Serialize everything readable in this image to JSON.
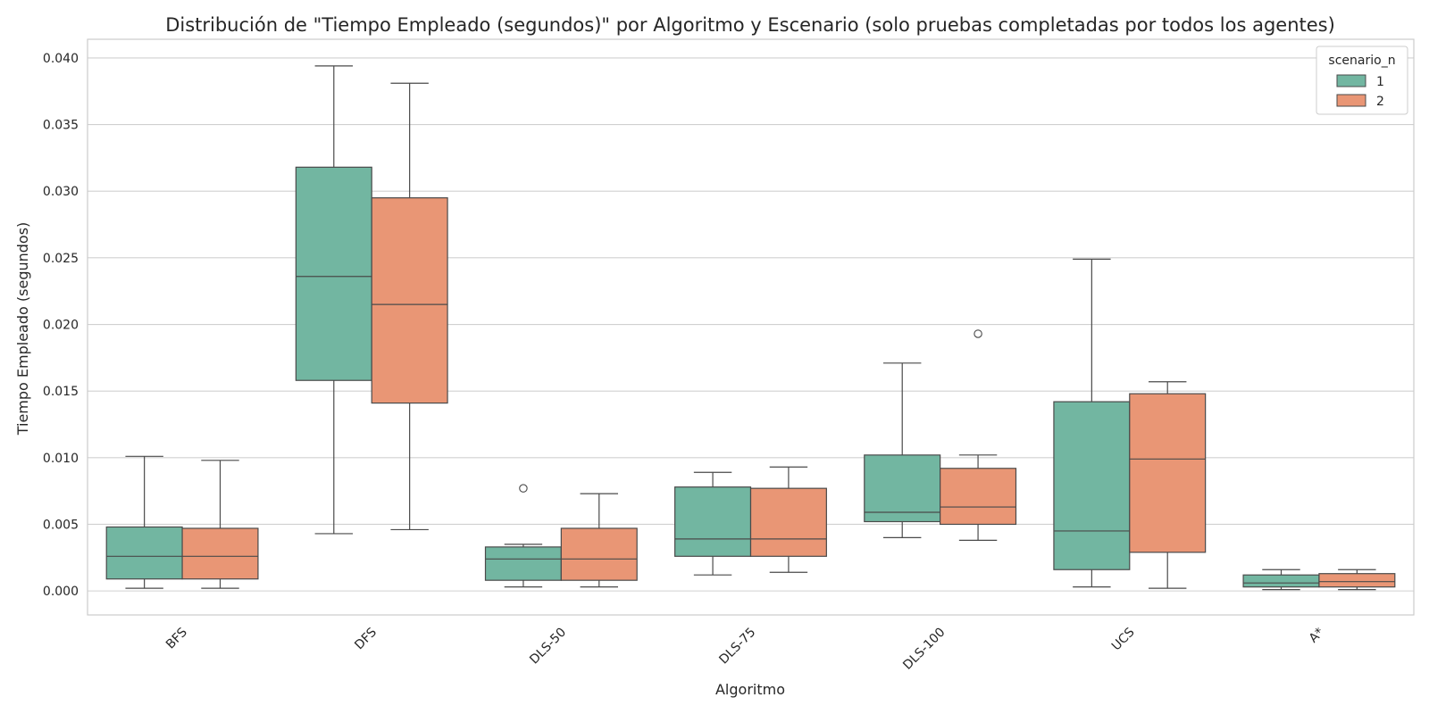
{
  "chart_data": {
    "type": "boxplot",
    "title": "Distribución de \"Tiempo Empleado (segundos)\" por Algoritmo y Escenario (solo pruebas completadas por todos los agentes)",
    "xlabel": "Algoritmo",
    "ylabel": "Tiempo Empleado (segundos)",
    "ylim": [
      -0.0018,
      0.0414
    ],
    "yticks": [
      0.0,
      0.005,
      0.01,
      0.015,
      0.02,
      0.025,
      0.03,
      0.035,
      0.04
    ],
    "ytick_labels": [
      "0.000",
      "0.005",
      "0.010",
      "0.015",
      "0.020",
      "0.025",
      "0.030",
      "0.035",
      "0.040"
    ],
    "grid": "horizontal",
    "legend": {
      "title": "scenario_n",
      "position": "top-right"
    },
    "categories": [
      "BFS",
      "DFS",
      "DLS-50",
      "DLS-75",
      "DLS-100",
      "UCS",
      "A*"
    ],
    "series": [
      {
        "name": "1",
        "color": "#72b6a1",
        "boxes": [
          {
            "whisker_low": 0.0002,
            "q1": 0.0009,
            "median": 0.0026,
            "q3": 0.0048,
            "whisker_high": 0.0101,
            "outliers": []
          },
          {
            "whisker_low": 0.0043,
            "q1": 0.0158,
            "median": 0.0236,
            "q3": 0.0318,
            "whisker_high": 0.0394,
            "outliers": []
          },
          {
            "whisker_low": 0.0003,
            "q1": 0.0008,
            "median": 0.0024,
            "q3": 0.0033,
            "whisker_high": 0.0035,
            "outliers": [
              0.0077
            ]
          },
          {
            "whisker_low": 0.0012,
            "q1": 0.0026,
            "median": 0.0039,
            "q3": 0.0078,
            "whisker_high": 0.0089,
            "outliers": []
          },
          {
            "whisker_low": 0.004,
            "q1": 0.0052,
            "median": 0.0059,
            "q3": 0.0102,
            "whisker_high": 0.0171,
            "outliers": []
          },
          {
            "whisker_low": 0.0003,
            "q1": 0.0016,
            "median": 0.0045,
            "q3": 0.0142,
            "whisker_high": 0.0249,
            "outliers": []
          },
          {
            "whisker_low": 0.0001,
            "q1": 0.0003,
            "median": 0.0006,
            "q3": 0.0012,
            "whisker_high": 0.0016,
            "outliers": []
          }
        ]
      },
      {
        "name": "2",
        "color": "#e99675",
        "boxes": [
          {
            "whisker_low": 0.0002,
            "q1": 0.0009,
            "median": 0.0026,
            "q3": 0.0047,
            "whisker_high": 0.0098,
            "outliers": []
          },
          {
            "whisker_low": 0.0046,
            "q1": 0.0141,
            "median": 0.0215,
            "q3": 0.0295,
            "whisker_high": 0.0381,
            "outliers": []
          },
          {
            "whisker_low": 0.0003,
            "q1": 0.0008,
            "median": 0.0024,
            "q3": 0.0047,
            "whisker_high": 0.0073,
            "outliers": []
          },
          {
            "whisker_low": 0.0014,
            "q1": 0.0026,
            "median": 0.0039,
            "q3": 0.0077,
            "whisker_high": 0.0093,
            "outliers": []
          },
          {
            "whisker_low": 0.0038,
            "q1": 0.005,
            "median": 0.0063,
            "q3": 0.0092,
            "whisker_high": 0.0102,
            "outliers": [
              0.0193
            ]
          },
          {
            "whisker_low": 0.0002,
            "q1": 0.0029,
            "median": 0.0099,
            "q3": 0.0148,
            "whisker_high": 0.0157,
            "outliers": []
          },
          {
            "whisker_low": 0.0001,
            "q1": 0.0003,
            "median": 0.0007,
            "q3": 0.0013,
            "whisker_high": 0.0016,
            "outliers": []
          }
        ]
      }
    ]
  }
}
